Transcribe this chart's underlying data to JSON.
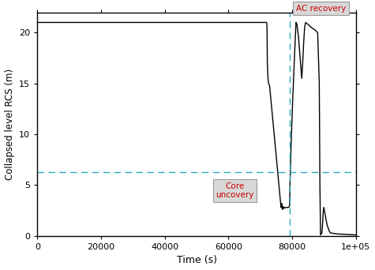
{
  "xlabel": "Time (s)",
  "ylabel": "Collapsed level RCS (m)",
  "xlim": [
    0,
    100000
  ],
  "ylim": [
    0,
    22
  ],
  "yticks": [
    0,
    5,
    10,
    15,
    20
  ],
  "xticks": [
    0,
    20000,
    40000,
    60000,
    80000,
    100000
  ],
  "xticklabels": [
    "0",
    "20000",
    "40000",
    "60000",
    "80000",
    "1e+05"
  ],
  "core_uncovery_level": 6.3,
  "ac_recovery_time": 79200,
  "flat_level": 21.0,
  "line_color": "#000000",
  "dashed_h_color": "#2aaabf",
  "dashed_v_color": "#2aaabf",
  "annotation_core_text": "Core\nuncovery",
  "annotation_ac_text": "AC recovery",
  "annotation_core_color": "#cc0000",
  "annotation_ac_color": "#cc0000",
  "background_color": "#ffffff",
  "figsize": [
    4.75,
    3.42
  ],
  "dpi": 100
}
